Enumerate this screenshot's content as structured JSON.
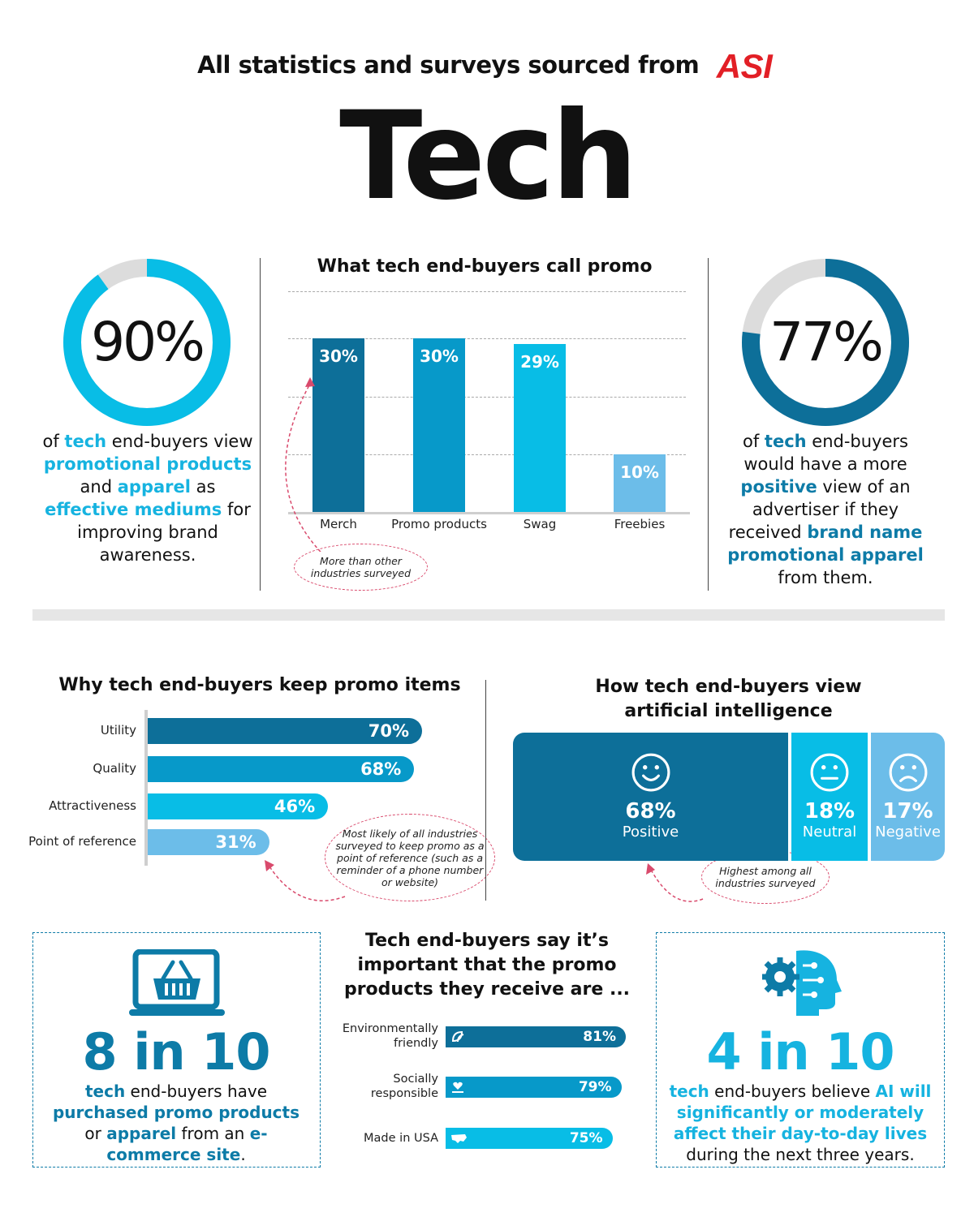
{
  "header": {
    "source_text": "All statistics and surveys sourced from",
    "logo_text": "ASI",
    "title": "Tech"
  },
  "colors": {
    "dark_blue": "#0d6f99",
    "mid_blue": "#0799c9",
    "light_blue": "#08bde6",
    "pale_blue": "#6cbde9",
    "grey": "#dcdcdc",
    "logo_red": "#e21f26"
  },
  "left_stat": {
    "value": "90%",
    "fraction": 0.9,
    "text": {
      "p1": "of ",
      "h1": "tech",
      "p2": " end-buyers view ",
      "h2": "promotional products",
      "p3": " and ",
      "h3": "apparel",
      "p4": " as ",
      "h4": "effective mediums",
      "p5": " for improving brand awareness."
    }
  },
  "right_stat": {
    "value": "77%",
    "fraction": 0.77,
    "text": {
      "p1": "of ",
      "h1": "tech",
      "p2": " end-buyers would have a more ",
      "h2": "positive",
      "p3": " view of an advertiser if they received ",
      "h3": "brand name promotional apparel",
      "p4": " from them."
    }
  },
  "chart_data": {
    "type": "bar",
    "title": "What tech end-buyers call promo",
    "categories": [
      "Merch",
      "Promo products",
      "Swag",
      "Freebies"
    ],
    "values": [
      30,
      30,
      29,
      10
    ],
    "labels": [
      "30%",
      "30%",
      "29%",
      "10%"
    ],
    "colors": [
      "#0d6f99",
      "#0799c9",
      "#08bde6",
      "#6cbde9"
    ],
    "ylim": [
      0,
      40
    ],
    "grid": true,
    "annotation": "More than other industries surveyed"
  },
  "keep": {
    "title": "Why tech end-buyers keep promo items",
    "rows": [
      {
        "label": "Utility",
        "value": 70,
        "text": "70%",
        "color": "#0d6f99"
      },
      {
        "label": "Quality",
        "value": 68,
        "text": "68%",
        "color": "#0799c9"
      },
      {
        "label": "Attractiveness",
        "value": 46,
        "text": "46%",
        "color": "#08bde6"
      },
      {
        "label": "Point of reference",
        "value": 31,
        "text": "31%",
        "color": "#6cbde9"
      }
    ],
    "annotation": "Most likely of all industries surveyed to keep promo as a point of reference (such as a reminder of a phone number or website)"
  },
  "ai": {
    "title_line1": "How tech end-buyers view",
    "title_line2": "artificial intelligence",
    "segments": [
      {
        "value": "68%",
        "label": "Positive",
        "icon": "smile-face-icon",
        "color": "#0d6f99"
      },
      {
        "value": "18%",
        "label": "Neutral",
        "icon": "neutral-face-icon",
        "color": "#08bde6"
      },
      {
        "value": "17%",
        "label": "Negative",
        "icon": "sad-face-icon",
        "color": "#6cbde9"
      }
    ],
    "annotation": "Highest among all industries surveyed"
  },
  "ecommerce": {
    "icon": "laptop-shopping-basket-icon",
    "big": "8 in 10",
    "text": {
      "h1": "tech",
      "p1": " end-buyers have ",
      "h2": "purchased promo products",
      "p2": " or ",
      "h3": "apparel",
      "p3": " from an ",
      "h4": "e-commerce site",
      "p4": "."
    }
  },
  "important": {
    "title": "Tech end-buyers say it’s important that the promo products they receive are ...",
    "rows": [
      {
        "label": "Environmentally friendly",
        "value": 81,
        "text": "81%",
        "icon": "leaf-icon",
        "color": "#0d6f99"
      },
      {
        "label": "Socially responsible",
        "value": 79,
        "text": "79%",
        "icon": "heart-hand-icon",
        "color": "#0799c9"
      },
      {
        "label": "Made in USA",
        "value": 75,
        "text": "75%",
        "icon": "usa-map-icon",
        "color": "#08bde6"
      }
    ]
  },
  "ai_life": {
    "icon": "ai-head-gear-icon",
    "big": "4 in 10",
    "text": {
      "h1": "tech",
      "p1": " end-buyers believe ",
      "h2": "AI will significantly or moderately affect their day-to-day lives",
      "p2": " during the next three years."
    }
  }
}
